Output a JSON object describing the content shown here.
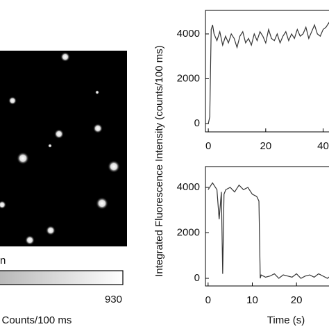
{
  "colorbar": {
    "label_top": "n",
    "tick": "930",
    "label": "n Counts/100 ms"
  },
  "chart_data": [
    {
      "type": "line",
      "ylabel": "Integrated Fluorescence Intensity (counts/100 ms)",
      "xlim": [
        -1,
        43.5
      ],
      "ylim": [
        -370,
        5050
      ],
      "xticks": [
        0,
        20,
        40
      ],
      "yticks": [
        0,
        2000,
        4000
      ],
      "series": [
        {
          "color": "#333333",
          "x": [
            0,
            0.5,
            1,
            1.5,
            2,
            3,
            4,
            5,
            6,
            7,
            8,
            9,
            10,
            11,
            12,
            13,
            14,
            15,
            16,
            17,
            18,
            19,
            20,
            21,
            22,
            23,
            24,
            25,
            26,
            27,
            28,
            29,
            30,
            31,
            32,
            33,
            34,
            35,
            36,
            37,
            38,
            39,
            40,
            41,
            42,
            43
          ],
          "values": [
            0,
            300,
            4200,
            4400,
            4000,
            3700,
            4100,
            3500,
            3900,
            3600,
            4000,
            3800,
            3400,
            3900,
            4100,
            3600,
            3800,
            3500,
            4000,
            3700,
            4100,
            3900,
            3600,
            4200,
            3800,
            3700,
            4000,
            3600,
            3900,
            4100,
            3700,
            4000,
            3800,
            4200,
            3900,
            4000,
            4300,
            3800,
            4100,
            4400,
            4000,
            3900,
            4200,
            4300,
            4500,
            4100
          ]
        }
      ]
    },
    {
      "type": "line",
      "xlabel": "Time (s)",
      "xlim": [
        -0.6,
        28.3
      ],
      "ylim": [
        -336,
        4916
      ],
      "xticks": [
        0,
        10,
        20
      ],
      "yticks": [
        0,
        2000,
        4000
      ],
      "series": [
        {
          "color": "#333333",
          "x": [
            0,
            1,
            2,
            2.5,
            3,
            3.3,
            3.6,
            4,
            5,
            6,
            7,
            8,
            9,
            10,
            11,
            11.5,
            11.8,
            12,
            13,
            14,
            15,
            16,
            17,
            18,
            19,
            20,
            21,
            22,
            23,
            24,
            25,
            26,
            27,
            28
          ],
          "values": [
            3900,
            4200,
            3900,
            2600,
            3800,
            200,
            3700,
            3900,
            4000,
            3800,
            4100,
            3900,
            4000,
            3700,
            3600,
            3400,
            0,
            150,
            50,
            100,
            200,
            0,
            150,
            100,
            50,
            200,
            0,
            100,
            150,
            50,
            200,
            100,
            0,
            150
          ]
        }
      ]
    }
  ]
}
